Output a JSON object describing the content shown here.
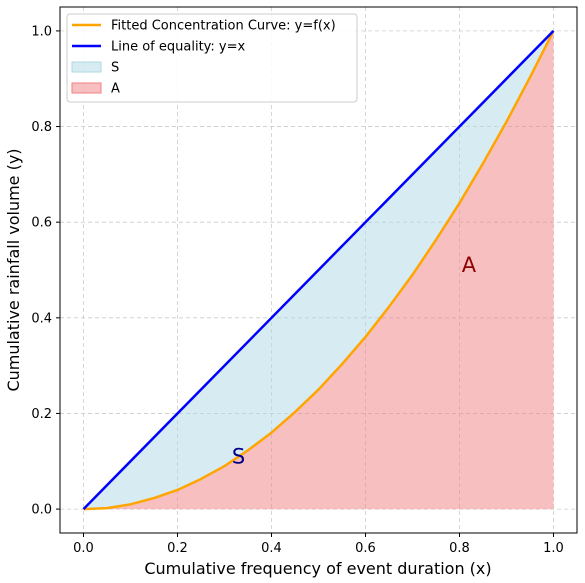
{
  "chart_data": {
    "type": "area",
    "xlabel": "Cumulative frequency of event duration (x)",
    "ylabel": "Cumulative rainfall volume (y)",
    "xlim": [
      -0.05,
      1.05
    ],
    "ylim": [
      -0.05,
      1.05
    ],
    "xticks": [
      "0.0",
      "0.2",
      "0.4",
      "0.6",
      "0.8",
      "1.0"
    ],
    "yticks": [
      "0.0",
      "0.2",
      "0.4",
      "0.6",
      "0.8",
      "1.0"
    ],
    "grid": true,
    "legend_position": "top-left",
    "series": [
      {
        "name": "Fitted Concentration Curve: y=f(x)",
        "kind": "line",
        "color": "#FFA500",
        "x": [
          0.0,
          0.05,
          0.1,
          0.15,
          0.2,
          0.25,
          0.3,
          0.35,
          0.4,
          0.45,
          0.5,
          0.55,
          0.6,
          0.65,
          0.7,
          0.75,
          0.8,
          0.85,
          0.9,
          0.95,
          1.0
        ],
        "y": [
          0.0,
          0.002,
          0.01,
          0.023,
          0.04,
          0.063,
          0.09,
          0.123,
          0.16,
          0.203,
          0.25,
          0.303,
          0.36,
          0.423,
          0.49,
          0.563,
          0.64,
          0.723,
          0.81,
          0.903,
          1.0
        ]
      },
      {
        "name": "Line of equality: y=x",
        "kind": "line",
        "color": "#0000FF",
        "x": [
          0.0,
          1.0
        ],
        "y": [
          0.0,
          1.0
        ]
      },
      {
        "name": "S",
        "kind": "fill-between",
        "color": "#ADD8E6",
        "between": [
          "Line of equality: y=x",
          "Fitted Concentration Curve: y=f(x)"
        ]
      },
      {
        "name": "A",
        "kind": "fill-below",
        "color": "#F08080",
        "below": "Fitted Concentration Curve: y=f(x)"
      }
    ],
    "annotations": [
      {
        "text": "S",
        "x": 0.33,
        "y": 0.11,
        "color": "#00008B"
      },
      {
        "text": "A",
        "x": 0.82,
        "y": 0.51,
        "color": "#8B0000"
      }
    ]
  }
}
